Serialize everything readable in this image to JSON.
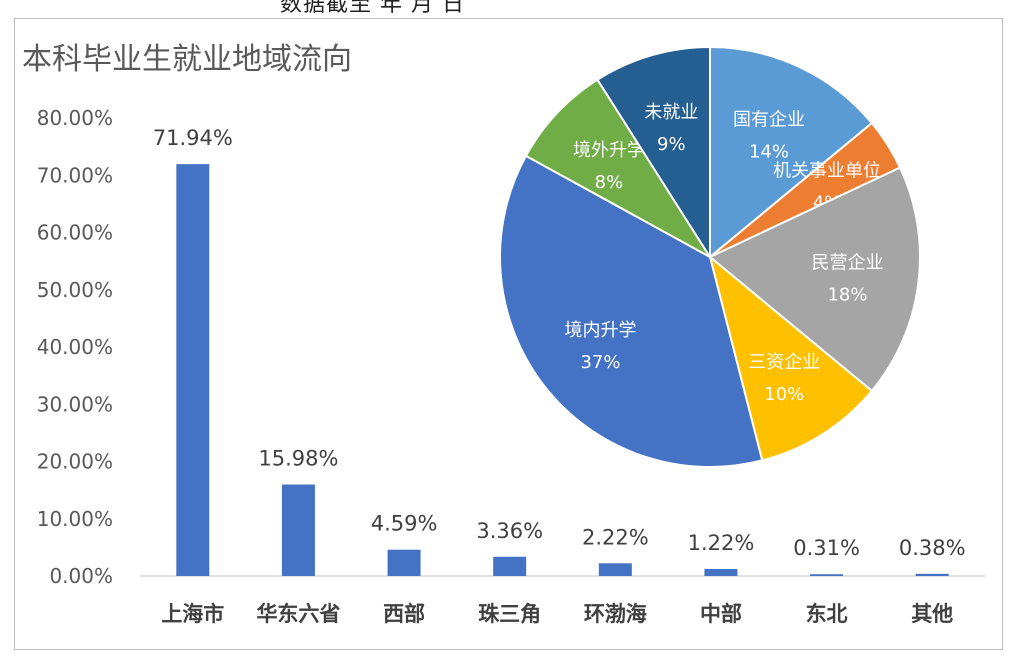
{
  "header_fragment": "数据截至 年 月 日",
  "chart_data": [
    {
      "type": "bar",
      "title": "本科毕业生就业地域流向",
      "categories": [
        "上海市",
        "华东六省",
        "西部",
        "珠三角",
        "环渤海",
        "中部",
        "东北",
        "其他"
      ],
      "values": [
        71.94,
        15.98,
        4.59,
        3.36,
        2.22,
        1.22,
        0.31,
        0.38
      ],
      "value_labels": [
        "71.94%",
        "15.98%",
        "4.59%",
        "3.36%",
        "2.22%",
        "1.22%",
        "0.31%",
        "0.38%"
      ],
      "ylim": [
        0,
        80
      ],
      "yticks": [
        "0.00%",
        "10.00%",
        "20.00%",
        "30.00%",
        "40.00%",
        "50.00%",
        "60.00%",
        "70.00%",
        "80.00%"
      ],
      "grid": false,
      "bar_color": "#4472c4"
    },
    {
      "type": "pie",
      "labels": [
        "国有企业",
        "机关事业单位",
        "民营企业",
        "三资企业",
        "境内升学",
        "境外升学",
        "未就业"
      ],
      "values": [
        14,
        4,
        18,
        10,
        37,
        8,
        9
      ],
      "value_labels": [
        "14%",
        "4%",
        "18%",
        "10%",
        "37%",
        "8%",
        "9%"
      ],
      "colors": [
        "#5b9bd5",
        "#ed7d31",
        "#a5a5a5",
        "#ffc000",
        "#4472c4",
        "#70ad47",
        "#255e91"
      ]
    }
  ]
}
